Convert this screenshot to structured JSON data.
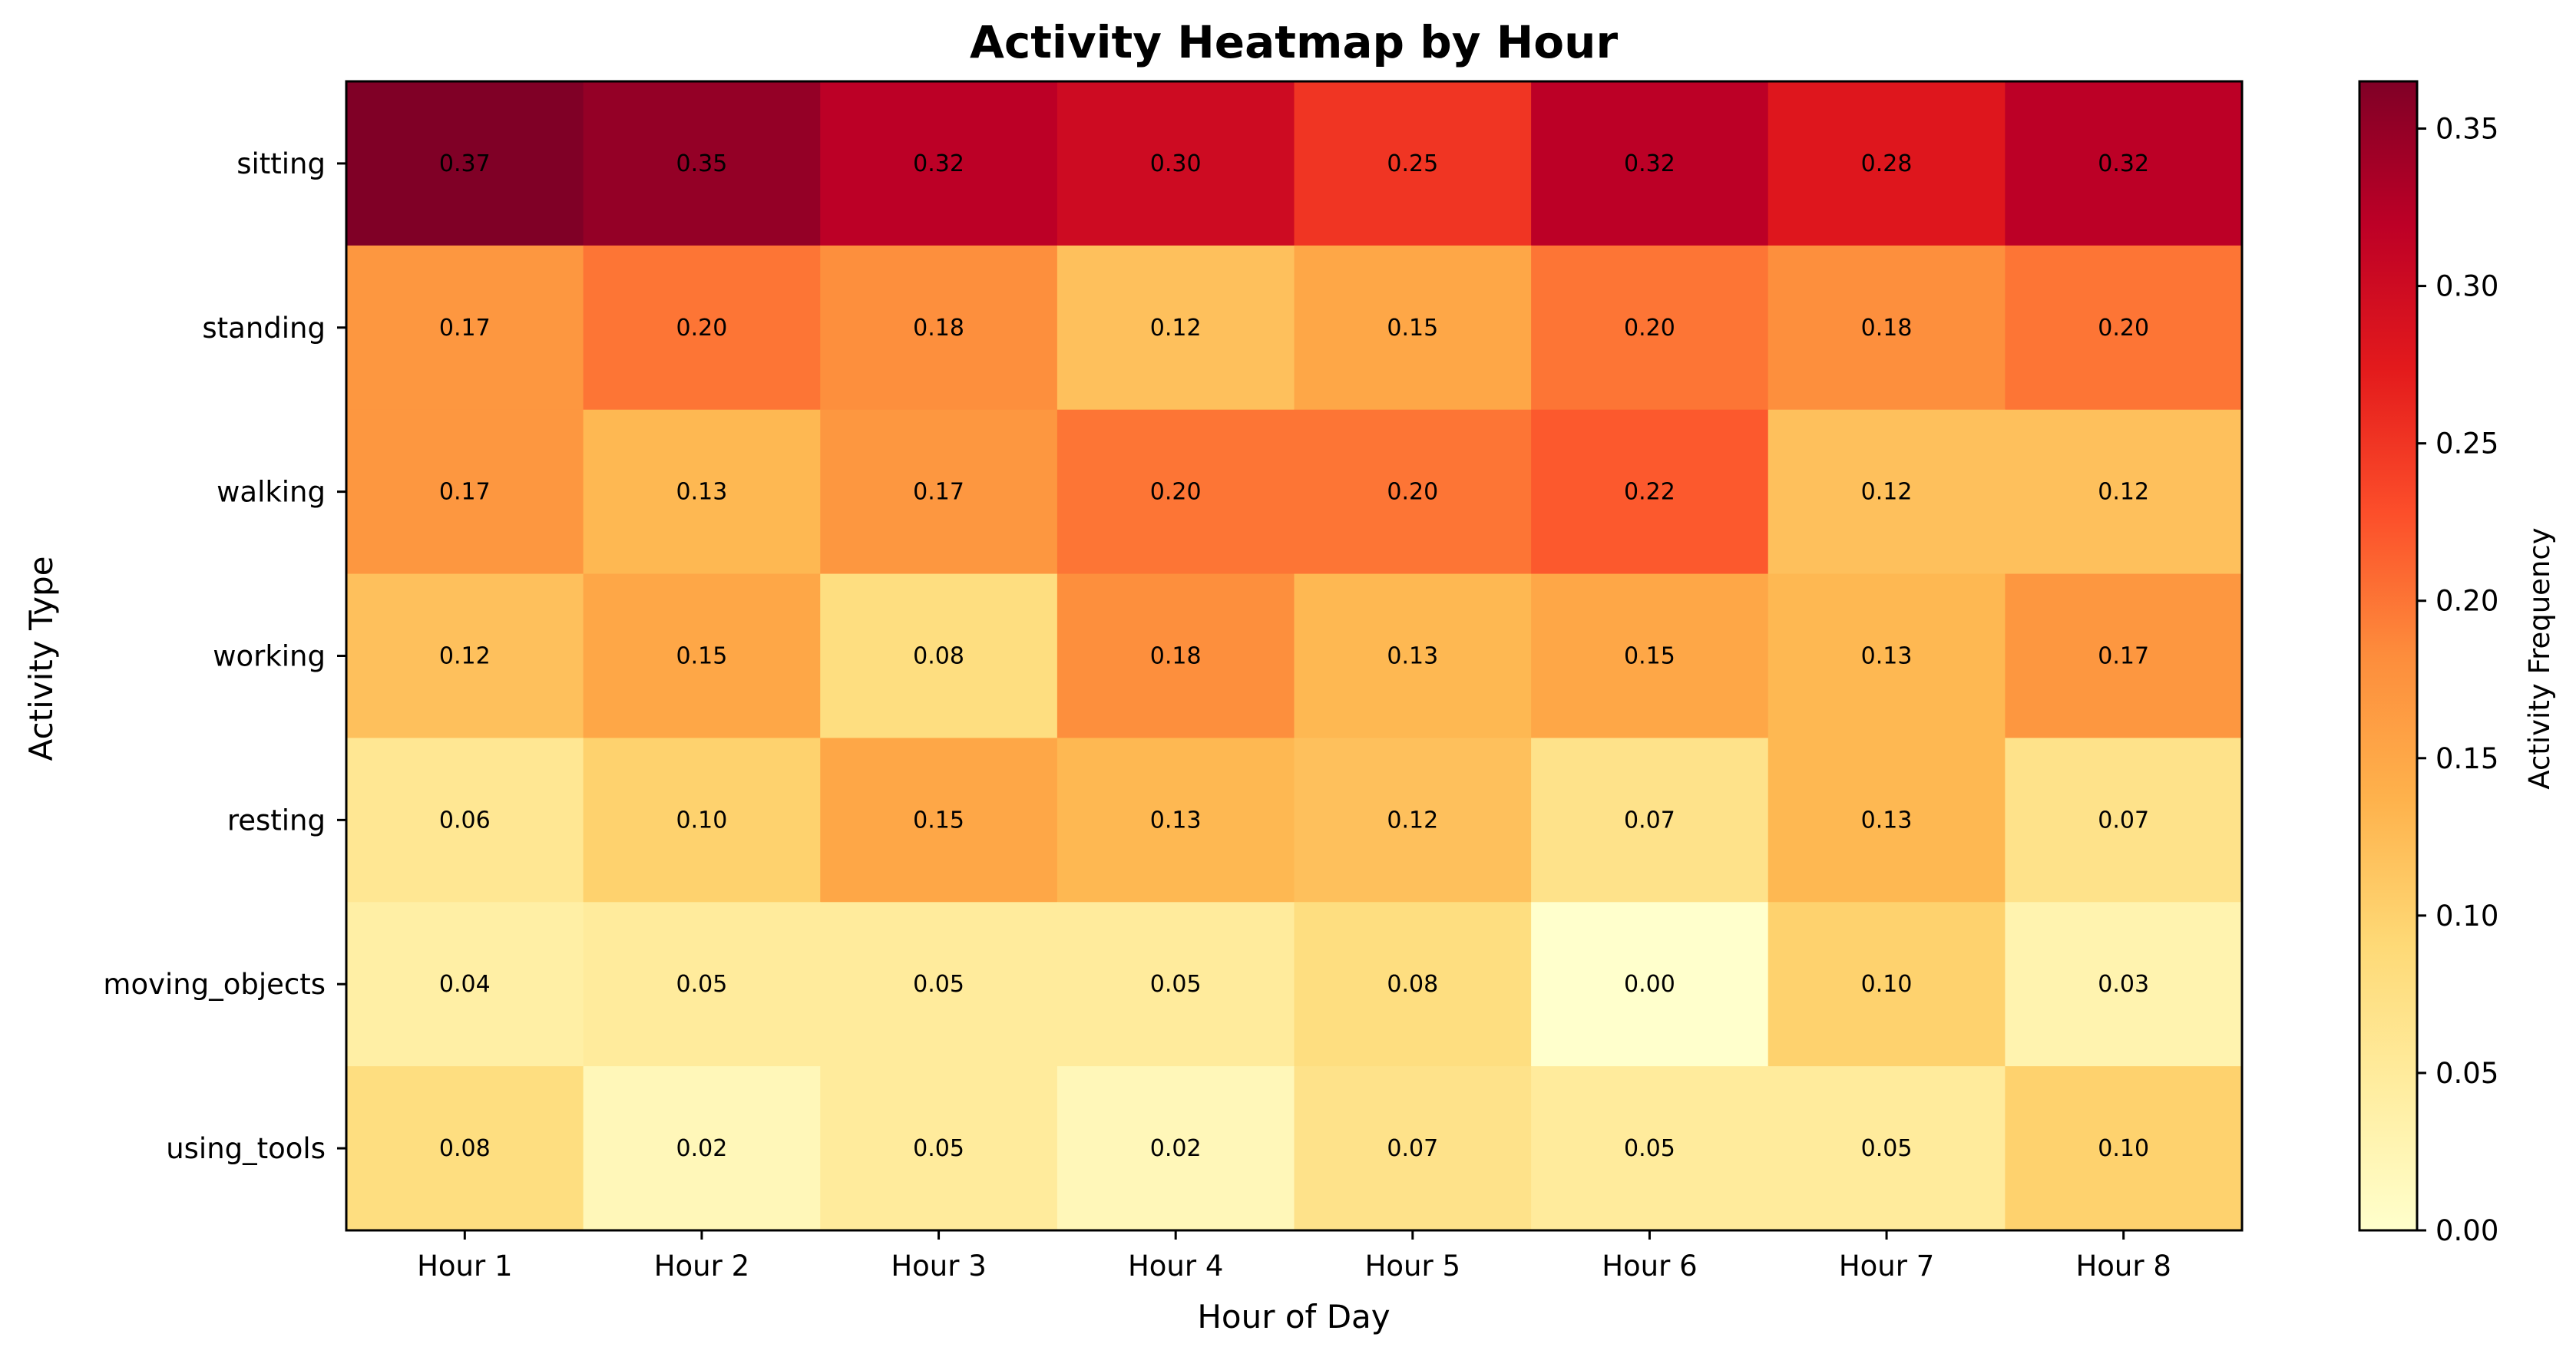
{
  "chart_data": {
    "type": "heatmap",
    "title": "Activity Heatmap by Hour",
    "xlabel": "Hour of Day",
    "ylabel": "Activity Type",
    "x_categories": [
      "Hour 1",
      "Hour 2",
      "Hour 3",
      "Hour 4",
      "Hour 5",
      "Hour 6",
      "Hour 7",
      "Hour 8"
    ],
    "y_categories": [
      "sitting",
      "standing",
      "walking",
      "working",
      "resting",
      "moving_objects",
      "using_tools"
    ],
    "values": [
      [
        0.37,
        0.35,
        0.32,
        0.3,
        0.25,
        0.32,
        0.28,
        0.32
      ],
      [
        0.17,
        0.2,
        0.18,
        0.12,
        0.15,
        0.2,
        0.18,
        0.2
      ],
      [
        0.17,
        0.13,
        0.17,
        0.2,
        0.2,
        0.22,
        0.12,
        0.12
      ],
      [
        0.12,
        0.15,
        0.08,
        0.18,
        0.13,
        0.15,
        0.13,
        0.17
      ],
      [
        0.06,
        0.1,
        0.15,
        0.13,
        0.12,
        0.07,
        0.13,
        0.07
      ],
      [
        0.04,
        0.05,
        0.05,
        0.05,
        0.08,
        0.0,
        0.1,
        0.03
      ],
      [
        0.08,
        0.02,
        0.05,
        0.02,
        0.07,
        0.05,
        0.05,
        0.1
      ]
    ],
    "colormap": "YlOrRd",
    "vmin": 0.0,
    "vmax": 0.365,
    "colorbar": {
      "label": "Activity Frequency",
      "ticks": [
        "0.00",
        "0.05",
        "0.10",
        "0.15",
        "0.20",
        "0.25",
        "0.30",
        "0.35"
      ]
    }
  }
}
